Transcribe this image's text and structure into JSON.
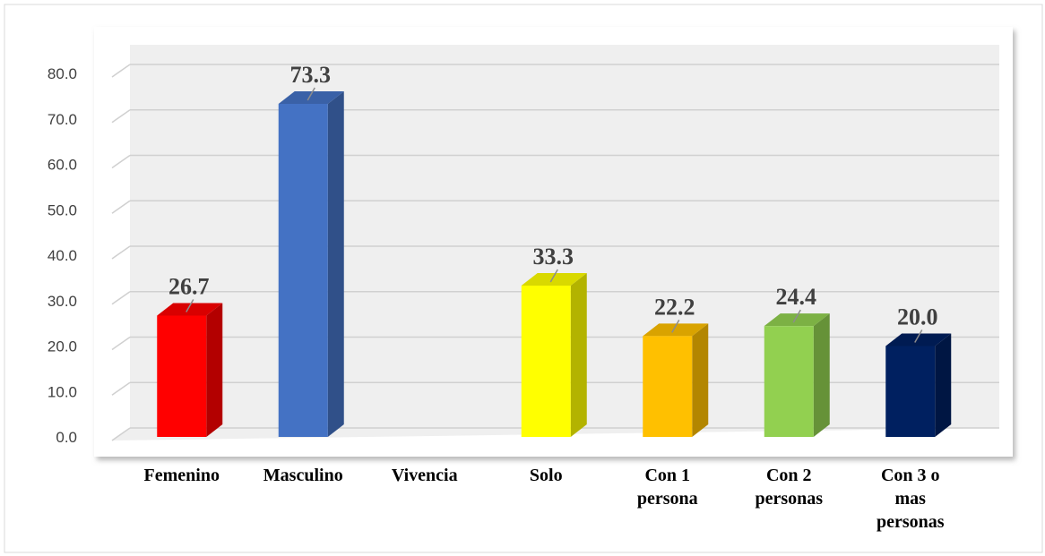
{
  "chart_data": {
    "type": "bar3d",
    "categories": [
      "Femenino",
      "Masculino",
      "Vivencia",
      "Solo",
      "Con 1 persona",
      "Con 2 personas",
      "Con 3 o mas personas"
    ],
    "values": [
      26.7,
      73.3,
      null,
      33.3,
      22.2,
      24.4,
      20.0
    ],
    "value_labels": [
      "26.7",
      "73.3",
      null,
      "33.3",
      "22.2",
      "24.4",
      "20.0"
    ],
    "colors": [
      "#ff0000",
      "#4472c4",
      null,
      "#ffff00",
      "#ffc000",
      "#92d050",
      "#002060"
    ],
    "ylim": [
      0,
      80
    ],
    "yticks": [
      {
        "value": 0,
        "label": "0.0"
      },
      {
        "value": 10,
        "label": "10.0"
      },
      {
        "value": 20,
        "label": "20.0"
      },
      {
        "value": 30,
        "label": "30.0"
      },
      {
        "value": 40,
        "label": "40.0"
      },
      {
        "value": 50,
        "label": "50.0"
      },
      {
        "value": 60,
        "label": "60.0"
      },
      {
        "value": 70,
        "label": "70.0"
      },
      {
        "value": 80,
        "label": "80.0"
      }
    ],
    "grid": true
  }
}
